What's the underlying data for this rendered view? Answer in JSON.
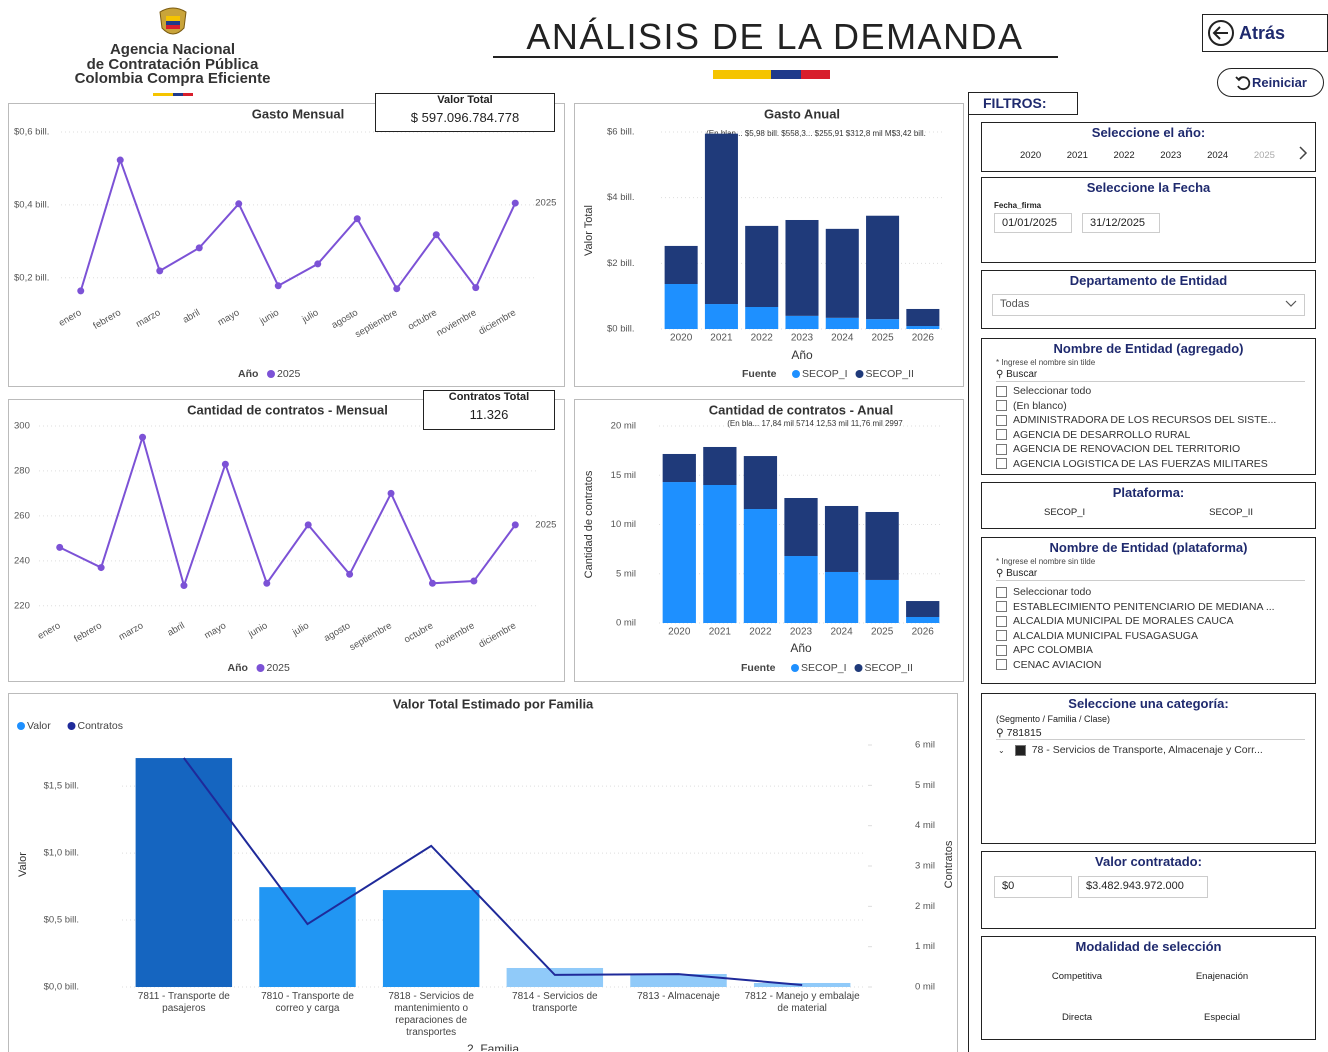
{
  "header": {
    "org": [
      "Agencia Nacional",
      "de Contratación Pública",
      "Colombia Compra Eficiente"
    ],
    "title": "ANÁLISIS DE LA DEMANDA",
    "back": "Atrás",
    "reset": "Reiniciar"
  },
  "cards": [
    {
      "label": "Valor Total",
      "value": "$ 597.096.784.778"
    },
    {
      "label": "Contratos Total",
      "value": "11.326"
    }
  ],
  "chart_data": [
    {
      "type": "line",
      "title": "Gasto Mensual",
      "categories": [
        "enero",
        "febrero",
        "marzo",
        "abril",
        "mayo",
        "junio",
        "julio",
        "agosto",
        "septiembre",
        "octubre",
        "noviembre",
        "diciembre"
      ],
      "series": [
        {
          "name": "2025",
          "color": "#7c52d6",
          "values": [
            0.164,
            0.523,
            0.219,
            0.282,
            0.403,
            0.178,
            0.238,
            0.362,
            0.17,
            0.318,
            0.173,
            0.405
          ]
        }
      ],
      "legend_title": "Año",
      "ylim": [
        0.15,
        0.6
      ],
      "yticks": [
        {
          "value": 0.2,
          "label": "$0,2 bill."
        },
        {
          "value": 0.4,
          "label": "$0,4 bill."
        },
        {
          "value": 0.6,
          "label": "$0,6 bill."
        }
      ],
      "grid": true
    },
    {
      "type": "stacked_bar",
      "title": "Gasto Anual",
      "categories": [
        "2020",
        "2021",
        "2022",
        "2023",
        "2024",
        "2025",
        "2026"
      ],
      "series": [
        {
          "name": "SECOP_I",
          "color": "#1e90ff",
          "values": [
            1.37,
            0.76,
            0.67,
            0.4,
            0.34,
            0.3,
            0.09
          ]
        },
        {
          "name": "SECOP_II",
          "color": "#1f3a7a",
          "values": [
            1.16,
            5.19,
            2.47,
            2.92,
            2.71,
            3.15,
            0.52
          ]
        }
      ],
      "legend_title": "Fuente",
      "x_label": "Año",
      "y_label": "Valor Total",
      "annotation": "(En blan...   $5,98 bill. $558,3...  $255,91  $312,8 mil  M$3,42 bill.",
      "ylim": [
        0,
        6
      ],
      "yticks": [
        {
          "value": 0,
          "label": "$0 bill."
        },
        {
          "value": 2,
          "label": "$2 bill."
        },
        {
          "value": 4,
          "label": "$4 bill."
        },
        {
          "value": 6,
          "label": "$6 bill."
        }
      ],
      "grid": true
    },
    {
      "type": "line",
      "title": "Cantidad de contratos - Mensual",
      "categories": [
        "enero",
        "febrero",
        "marzo",
        "abril",
        "mayo",
        "junio",
        "julio",
        "agosto",
        "septiembre",
        "octubre",
        "noviembre",
        "diciembre"
      ],
      "series": [
        {
          "name": "2025",
          "color": "#7c52d6",
          "values": [
            246,
            237,
            295,
            229,
            283,
            230,
            256,
            234,
            270,
            230,
            231,
            256
          ]
        }
      ],
      "legend_title": "Año",
      "ylim": [
        215,
        302
      ],
      "yticks": [
        220,
        240,
        260,
        280,
        300
      ],
      "grid": true
    },
    {
      "type": "stacked_bar",
      "title": "Cantidad de contratos - Anual",
      "categories": [
        "2020",
        "2021",
        "2022",
        "2023",
        "2024",
        "2025",
        "2026"
      ],
      "series": [
        {
          "name": "SECOP_I",
          "color": "#1e90ff",
          "values": [
            14310,
            14010,
            11570,
            6800,
            5180,
            4370,
            610
          ]
        },
        {
          "name": "SECOP_II",
          "color": "#1f3a7a",
          "values": [
            2850,
            3860,
            5380,
            5890,
            6700,
            6900,
            1620
          ]
        }
      ],
      "legend_title": "Fuente",
      "x_label": "Año",
      "y_label": "Cantidad de contratos",
      "annotation": "(En bla... 17,84 mil    5714    12,53 mil  11,76 mil      2997",
      "ylim": [
        0,
        20000
      ],
      "yticks": [
        {
          "value": 0,
          "label": "0 mil"
        },
        {
          "value": 5000,
          "label": "5 mil"
        },
        {
          "value": 10000,
          "label": "10 mil"
        },
        {
          "value": 15000,
          "label": "15 mil"
        },
        {
          "value": 20000,
          "label": "20 mil"
        }
      ],
      "grid": true
    },
    {
      "type": "combo",
      "title": "Valor Total Estimado por Familia",
      "categories": [
        "7811 - Transporte de pasajeros",
        "7810 - Transporte de correo y carga",
        "7818 - Servicios de mantenimiento o reparaciones de transportes",
        "7814 - Servicios de transporte",
        "7813 - Almacenaje",
        "7812 - Manejo y embalaje de material"
      ],
      "series": [
        {
          "name": "Valor",
          "color": "#1e90ff",
          "colors": [
            "#1565c0",
            "#2196f3",
            "#2196f3",
            "#90caf9",
            "#90caf9",
            "#90caf9"
          ],
          "values": [
            1.71,
            0.746,
            0.724,
            0.142,
            0.097,
            0.03
          ]
        },
        {
          "name": "Contratos",
          "color": "#1f2a9a",
          "axis": "y2",
          "values": [
            5680,
            1560,
            3500,
            300,
            320,
            50
          ]
        }
      ],
      "x_label": "2_Familia",
      "y_label": "Valor",
      "y2_label": "Contratos",
      "ylim": [
        0,
        1.83
      ],
      "yticks": [
        {
          "value": 0,
          "label": "$0,0 bill."
        },
        {
          "value": 0.5,
          "label": "$0,5 bill."
        },
        {
          "value": 1,
          "label": "$1,0 bill."
        },
        {
          "value": 1.5,
          "label": "$1,5 bill."
        }
      ],
      "y2lim": [
        0,
        6075
      ],
      "y2ticks": [
        {
          "value": 0,
          "label": "0 mil"
        },
        {
          "value": 1000,
          "label": "1 mil"
        },
        {
          "value": 2000,
          "label": "2 mil"
        },
        {
          "value": 3000,
          "label": "3 mil"
        },
        {
          "value": 4000,
          "label": "4 mil"
        },
        {
          "value": 5000,
          "label": "5 mil"
        },
        {
          "value": 6000,
          "label": "6 mil"
        }
      ],
      "grid": true
    }
  ],
  "filters": {
    "label": "FILTROS:",
    "year": {
      "title": "Seleccione el año:",
      "options": [
        "2020",
        "2021",
        "2022",
        "2023",
        "2024",
        "2025"
      ]
    },
    "date": {
      "title": "Seleccione la Fecha",
      "field": "Fecha_firma",
      "start": "01/01/2025",
      "end": "31/12/2025"
    },
    "department": {
      "title": "Departamento de Entidad",
      "selected": "Todas"
    },
    "entity_aggregated": {
      "title": "Nombre de Entidad (agregado)",
      "hint": "* Ingrese el nombre sin tilde",
      "search": "Buscar",
      "items": [
        "Seleccionar todo",
        "(En blanco)",
        "ADMINISTRADORA DE LOS RECURSOS DEL SISTE...",
        "AGENCIA DE DESARROLLO RURAL",
        "AGENCIA DE RENOVACION DEL TERRITORIO",
        "AGENCIA LOGISTICA DE LAS FUERZAS MILITARES"
      ]
    },
    "platform": {
      "title": "Plataforma:",
      "options": [
        "SECOP_I",
        "SECOP_II"
      ]
    },
    "entity_platform": {
      "title": "Nombre de Entidad (plataforma)",
      "hint": "* Ingrese el nombre sin tilde",
      "search": "Buscar",
      "items": [
        "Seleccionar todo",
        "ESTABLECIMIENTO PENITENCIARIO DE MEDIANA ...",
        "ALCALDIA MUNICIPAL DE MORALES CAUCA",
        "ALCALDIA MUNICIPAL FUSAGASUGA",
        "APC COLOMBIA",
        "CENAC AVIACION"
      ]
    },
    "category": {
      "title": "Seleccione una categoría:",
      "hint": "(Segmento / Familia / Clase)",
      "search": "781815",
      "tree_item": "78 - Servicios de Transporte, Almacenaje y Corr..."
    },
    "contract_value": {
      "title": "Valor contratado:",
      "min": "$0",
      "max": "$3.482.943.972.000"
    },
    "modality": {
      "title": "Modalidad de selección",
      "options": [
        "Competitiva",
        "Enajenación",
        "Directa",
        "Especial"
      ]
    }
  }
}
